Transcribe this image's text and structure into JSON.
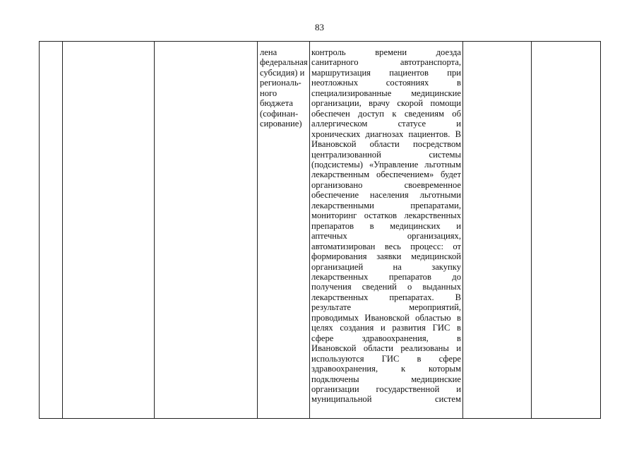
{
  "page_number": "83",
  "table": {
    "funding_cell_lines": [
      "лена",
      "федеральная",
      "субсидия) и",
      "региональ-",
      "ного",
      "бюджета",
      "(софинан-",
      "сирование)"
    ],
    "description_cell_lines": [
      "контроль времени доезда",
      "санитарного автотранспорта,",
      "маршрутизация пациентов при",
      "неотложных состояниях в",
      "специализированные медицинские",
      "организации, врачу скорой помощи",
      "обеспечен доступ к сведениям об",
      "аллергическом статусе и",
      "хронических диагнозах пациентов. В",
      "Ивановской области посредством",
      "централизованной системы",
      "(подсистемы) «Управление льготным",
      "лекарственным обеспечением» будет",
      "организовано своевременное",
      "обеспечение населения льготными",
      "лекарственными препаратами,",
      "мониторинг остатков лекарственных",
      "препаратов в медицинских и",
      "аптечных организациях,",
      "автоматизирован весь процесс: от",
      "формирования заявки медицинской",
      "организацией на закупку",
      "лекарственных препаратов до",
      "получения сведений о выданных",
      "лекарственных препаратах. В",
      "результате мероприятий,",
      "проводимых Ивановской областью в",
      "целях создания и развития ГИС в",
      "сфере здравоохранения, в",
      "Ивановской области реализованы и",
      "используются ГИС в сфере",
      "здравоохранения, к которым",
      "подключены медицинские",
      "организации государственной и",
      "муниципальной систем"
    ]
  }
}
